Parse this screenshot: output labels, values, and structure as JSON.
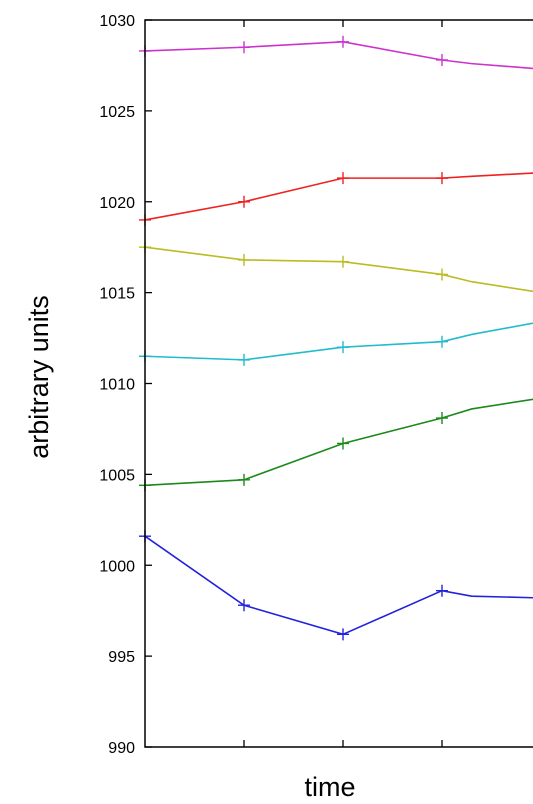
{
  "chart_data": {
    "type": "line",
    "title": "",
    "xlabel": "time",
    "ylabel": "arbitrary units",
    "ylim": [
      990,
      1030
    ],
    "xlim": [
      0,
      4
    ],
    "x": [
      0,
      1,
      2,
      3,
      3.3,
      4
    ],
    "yticks": [
      "990",
      "995",
      "1000",
      "1005",
      "1010",
      "1015",
      "1020",
      "1025",
      "1030"
    ],
    "grid": false,
    "legend": "none",
    "series": [
      {
        "color": "#cc33cc",
        "values": [
          1028.3,
          1028.5,
          1028.8,
          1027.8,
          1027.6,
          1027.3
        ]
      },
      {
        "color": "#ee2222",
        "values": [
          1019.0,
          1020.0,
          1021.3,
          1021.3,
          1021.4,
          1021.6
        ]
      },
      {
        "color": "#bbbb22",
        "values": [
          1017.5,
          1016.8,
          1016.7,
          1016.0,
          1015.6,
          1015.0
        ]
      },
      {
        "color": "#22bbcc",
        "values": [
          1011.5,
          1011.3,
          1012.0,
          1012.3,
          1012.7,
          1013.4
        ]
      },
      {
        "color": "#1b8a1b",
        "values": [
          1004.4,
          1004.7,
          1006.7,
          1008.1,
          1008.6,
          1009.2
        ]
      },
      {
        "color": "#2222dd",
        "values": [
          1001.6,
          997.8,
          996.2,
          998.6,
          998.3,
          998.2
        ]
      }
    ]
  }
}
